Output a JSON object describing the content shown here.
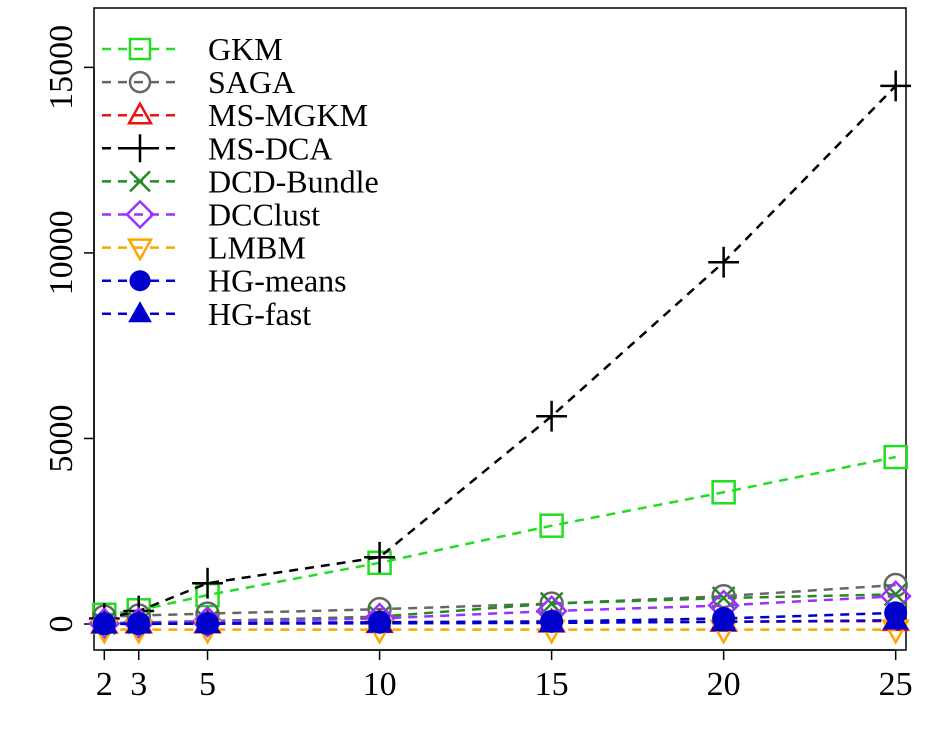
{
  "chart_data": {
    "type": "line",
    "title": "",
    "xlabel": "",
    "ylabel": "",
    "x": [
      2,
      3,
      5,
      10,
      15,
      20,
      25
    ],
    "xticks": [
      "2",
      "3",
      "5",
      "10",
      "15",
      "20",
      "25"
    ],
    "yticks": [
      "0",
      "5000",
      "10000",
      "15000"
    ],
    "xlim": [
      1.7,
      25.3
    ],
    "ylim": [
      -700,
      16600
    ],
    "grid": false,
    "legend_position": "top-left",
    "series": [
      {
        "name": "GKM",
        "color": "#22dd22",
        "marker": "open-square",
        "values": [
          250,
          370,
          780,
          1650,
          2650,
          3550,
          4500
        ]
      },
      {
        "name": "SAGA",
        "color": "#666666",
        "marker": "open-circle",
        "values": [
          200,
          230,
          280,
          400,
          550,
          750,
          1050
        ]
      },
      {
        "name": "MS-MGKM",
        "color": "#ee1111",
        "marker": "open-triangle-up",
        "values": [
          10,
          12,
          15,
          25,
          40,
          60,
          80
        ]
      },
      {
        "name": "MS-DCA",
        "color": "#000000",
        "marker": "plus",
        "values": [
          150,
          350,
          1100,
          1800,
          5600,
          9750,
          14500
        ]
      },
      {
        "name": "DCD-Bundle",
        "color": "#228b22",
        "marker": "cross",
        "values": [
          20,
          40,
          80,
          200,
          550,
          700,
          800
        ]
      },
      {
        "name": "DCClust",
        "color": "#9b30ff",
        "marker": "open-diamond",
        "values": [
          15,
          30,
          60,
          150,
          350,
          500,
          750
        ]
      },
      {
        "name": "LMBM",
        "color": "#ffa500",
        "marker": "open-triangle-down",
        "values": [
          -150,
          -150,
          -150,
          -150,
          -150,
          -150,
          -150
        ]
      },
      {
        "name": "HG-means",
        "color": "#0000cd",
        "marker": "filled-circle",
        "values": [
          5,
          10,
          15,
          50,
          70,
          150,
          300
        ]
      },
      {
        "name": "HG-fast",
        "color": "#0000cd",
        "marker": "filled-triangle-up",
        "values": [
          3,
          5,
          8,
          20,
          30,
          60,
          100
        ]
      }
    ]
  }
}
